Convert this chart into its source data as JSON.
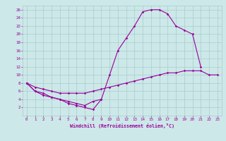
{
  "xlabel": "Windchill (Refroidissement éolien,°C)",
  "bg_color": "#cce8e8",
  "grid_color": "#aacccc",
  "line_color": "#990099",
  "line1_x": [
    0,
    1,
    2,
    3,
    4,
    5,
    6,
    7,
    8,
    9,
    10,
    11,
    12,
    13,
    14,
    15,
    16,
    17,
    18,
    19,
    20,
    21
  ],
  "line1_y": [
    8,
    6,
    5,
    4.5,
    4,
    3,
    2.5,
    2,
    1.5,
    4,
    10,
    16,
    19,
    22,
    25.5,
    26,
    26,
    25,
    22,
    21,
    20,
    12
  ],
  "line2_x": [
    0,
    1,
    2,
    3,
    4,
    5,
    6,
    7,
    8,
    9
  ],
  "line2_y": [
    8,
    6,
    5.5,
    4.5,
    4,
    3.5,
    3,
    2.5,
    3.5,
    4
  ],
  "line3_x": [
    0,
    1,
    2,
    3,
    4,
    5,
    6,
    7,
    8,
    9,
    10,
    11,
    12,
    13,
    14,
    15,
    16,
    17,
    18,
    19,
    20,
    21,
    22,
    23
  ],
  "line3_y": [
    8,
    7,
    6.5,
    6,
    5.5,
    5.5,
    5.5,
    5.5,
    6,
    6.5,
    7,
    7.5,
    8,
    8.5,
    9,
    9.5,
    10,
    10.5,
    10.5,
    11,
    11,
    11,
    10,
    10
  ],
  "ylim": [
    0,
    27
  ],
  "xlim": [
    -0.5,
    23.5
  ],
  "yticks": [
    2,
    4,
    6,
    8,
    10,
    12,
    14,
    16,
    18,
    20,
    22,
    24,
    26
  ],
  "xticks": [
    0,
    1,
    2,
    3,
    4,
    5,
    6,
    7,
    8,
    9,
    10,
    11,
    12,
    13,
    14,
    15,
    16,
    17,
    18,
    19,
    20,
    21,
    22,
    23
  ]
}
